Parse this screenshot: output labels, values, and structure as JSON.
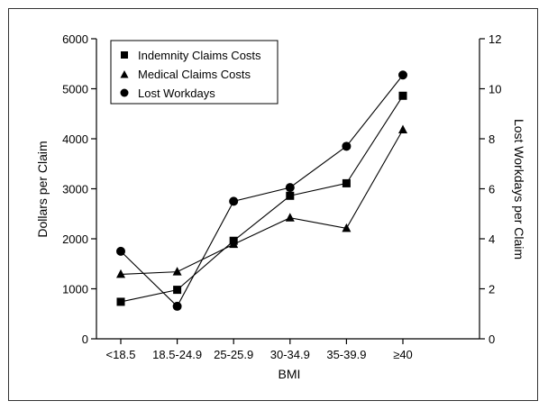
{
  "chart_data": {
    "type": "line",
    "xlabel": "BMI",
    "ylabel_left": "Dollars per Claim",
    "ylabel_right": "Lost Workdays per Claim",
    "categories": [
      "<18.5",
      "18.5-24.9",
      "25-25.9",
      "30-34.9",
      "35-39.9",
      "≥40"
    ],
    "ylim_left": [
      0,
      6000
    ],
    "ylim_right": [
      0,
      12
    ],
    "yticks_left": [
      "0",
      "1000",
      "2000",
      "3000",
      "4000",
      "5000",
      "6000"
    ],
    "yticks_right": [
      "0",
      "2",
      "4",
      "6",
      "8",
      "10",
      "12"
    ],
    "legend_position": "top-left",
    "grid": false,
    "series": [
      {
        "name": "Indemnity Claims Costs",
        "marker": "square",
        "axis": "left",
        "values": [
          740,
          980,
          1960,
          2860,
          3110,
          4860
        ]
      },
      {
        "name": "Medical Claims Costs",
        "marker": "triangle",
        "axis": "left",
        "values": [
          1290,
          1340,
          1890,
          2420,
          2210,
          4180
        ]
      },
      {
        "name": "Lost Workdays",
        "marker": "circle",
        "axis": "right",
        "values": [
          3.5,
          1.3,
          5.5,
          6.05,
          7.7,
          10.55
        ]
      }
    ]
  }
}
